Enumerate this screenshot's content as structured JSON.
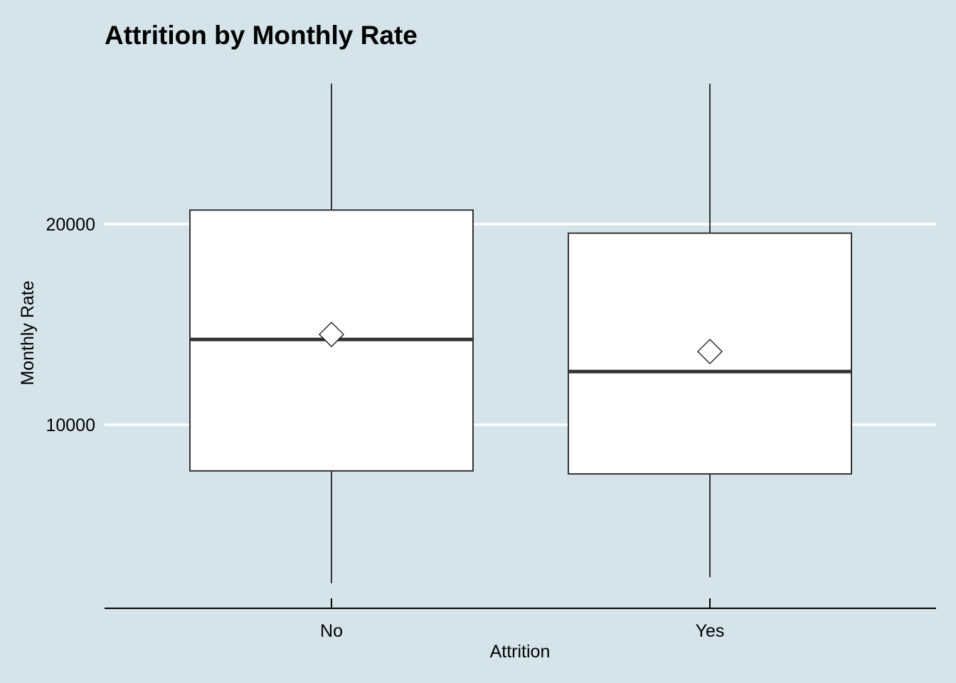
{
  "chart_data": {
    "type": "boxplot",
    "title": "Attrition by Monthly Rate",
    "xlabel": "Attrition",
    "ylabel": "Monthly Rate",
    "categories": [
      "No",
      "Yes"
    ],
    "y_ticks": [
      10000,
      20000
    ],
    "y_tick_labels": [
      "10000",
      "20000"
    ],
    "ylim": [
      1000,
      28000
    ],
    "grid": "horizontal major only",
    "boxes": [
      {
        "category": "No",
        "min": 2100,
        "q1": 7700,
        "median": 14250,
        "q3": 20700,
        "max": 27000,
        "mean": 14500
      },
      {
        "category": "Yes",
        "min": 2400,
        "q1": 7550,
        "median": 12650,
        "q3": 19550,
        "max": 27000,
        "mean": 13650
      }
    ]
  },
  "colors": {
    "background": "#d5e4eb",
    "box_fill": "#ffffff",
    "box_stroke": "#333333",
    "median": "#333333",
    "grid": "#ffffff",
    "axis": "#000000"
  }
}
